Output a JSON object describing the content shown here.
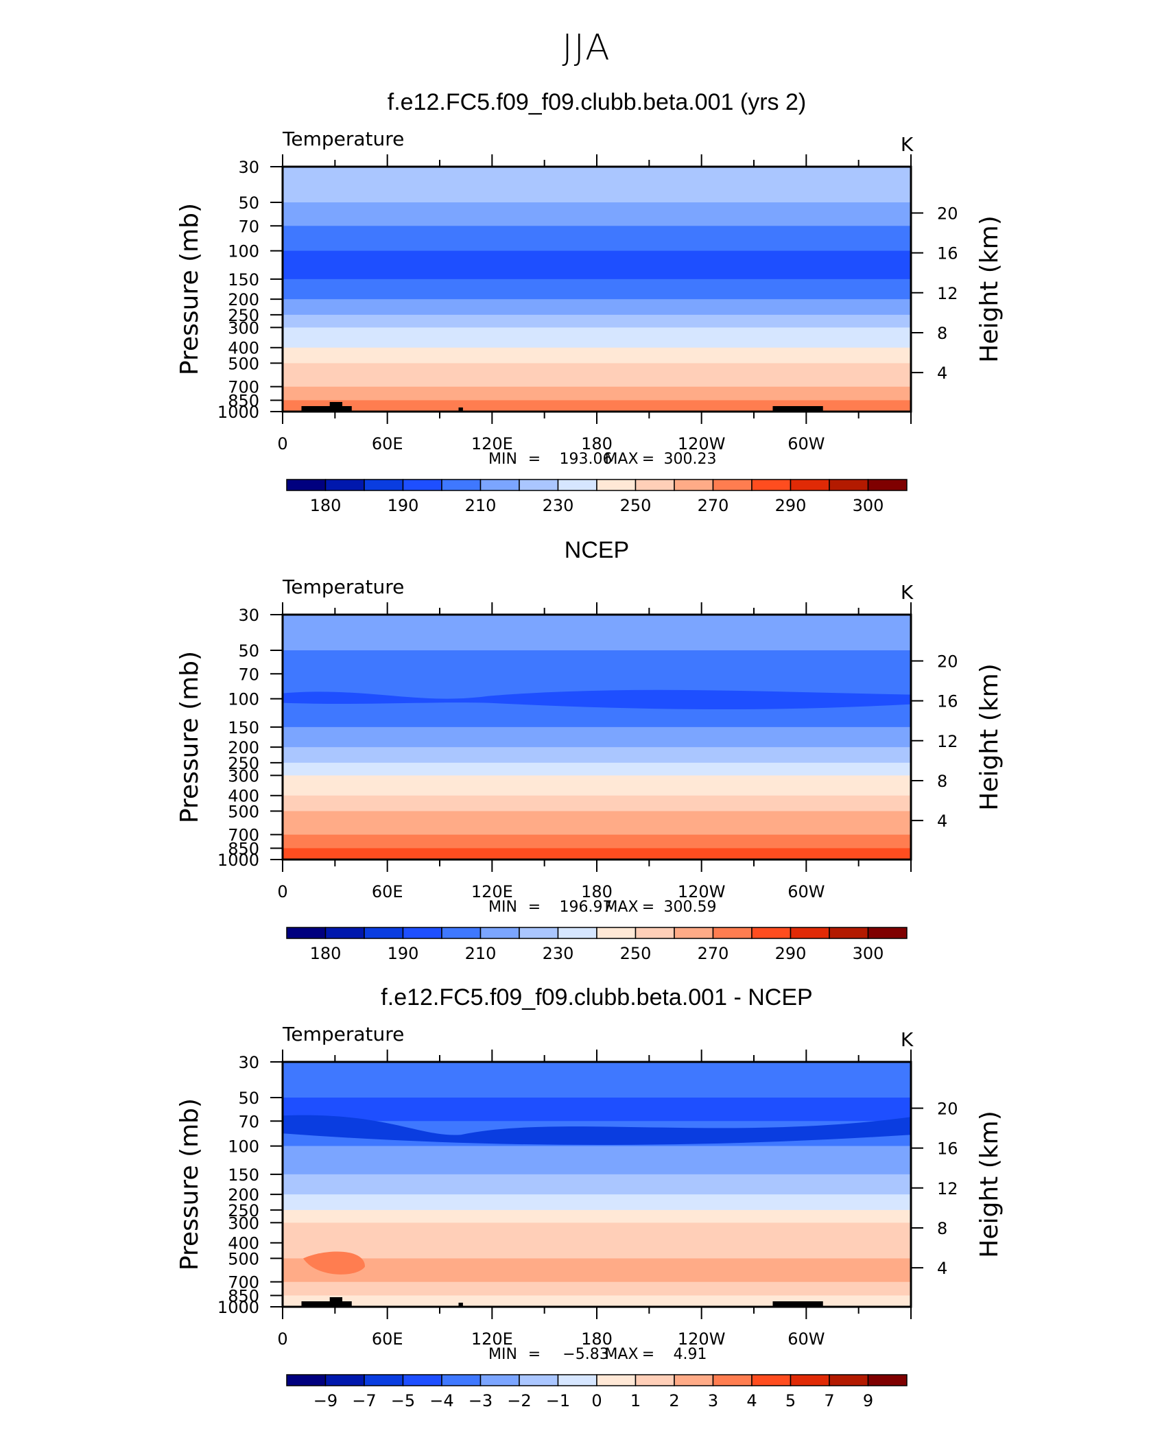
{
  "page_title": "JJA",
  "panels": [
    {
      "title": "f.e12.FC5.f09_f09.clubb.beta.001 (yrs 2)",
      "variable": "Temperature",
      "units": "K",
      "stats": {
        "min_label": "MIN",
        "min_value": "193.06",
        "max_label": "MAX",
        "max_value": "300.23",
        "eq": "="
      }
    },
    {
      "title": "NCEP",
      "variable": "Temperature",
      "units": "K",
      "stats": {
        "min_label": "MIN",
        "min_value": "196.97",
        "max_label": "MAX",
        "max_value": "300.59",
        "eq": "="
      }
    },
    {
      "title": "f.e12.FC5.f09_f09.clubb.beta.001 - NCEP",
      "variable": "Temperature",
      "units": "K",
      "stats": {
        "min_label": "MIN",
        "min_value": "−5.83",
        "max_label": "MAX",
        "max_value": "4.91",
        "eq": "="
      }
    }
  ],
  "chart_data": [
    {
      "type": "heatmap",
      "title": "f.e12.FC5.f09_f09.clubb.beta.001 (yrs 2)",
      "xlabel": "",
      "ylabel": "Pressure (mb)",
      "y2label": "Height (km)",
      "x_ticks": [
        "0",
        "60E",
        "120E",
        "180",
        "120W",
        "60W"
      ],
      "y_ticks": [
        "30",
        "50",
        "70",
        "100",
        "150",
        "200",
        "250",
        "300",
        "400",
        "500",
        "700",
        "850",
        "1000"
      ],
      "y2_ticks": [
        "20",
        "16",
        "12",
        "8",
        "4"
      ],
      "colorbar_labels": [
        "180",
        "190",
        "210",
        "230",
        "250",
        "270",
        "290",
        "300"
      ],
      "colors": [
        "#00007f",
        "#0018ad",
        "#0a3de0",
        "#1e4fff",
        "#3f78ff",
        "#7ba5ff",
        "#aac6ff",
        "#d6e6ff",
        "#ffe8d6",
        "#ffcfb8",
        "#ffab87",
        "#ff7d50",
        "#ff4d1f",
        "#e02a06",
        "#b31a00",
        "#7f0000"
      ],
      "layers_level_index": [
        6,
        5,
        4,
        3,
        4,
        5,
        6,
        7,
        8,
        9,
        10,
        11,
        12,
        13
      ],
      "min": 193.06,
      "max": 300.23
    },
    {
      "type": "heatmap",
      "title": "NCEP",
      "xlabel": "",
      "ylabel": "Pressure (mb)",
      "y2label": "Height (km)",
      "x_ticks": [
        "0",
        "60E",
        "120E",
        "180",
        "120W",
        "60W"
      ],
      "y_ticks": [
        "30",
        "50",
        "70",
        "100",
        "150",
        "200",
        "250",
        "300",
        "400",
        "500",
        "700",
        "850",
        "1000"
      ],
      "y2_ticks": [
        "20",
        "16",
        "12",
        "8",
        "4"
      ],
      "colorbar_labels": [
        "180",
        "190",
        "210",
        "230",
        "250",
        "270",
        "290",
        "300"
      ],
      "colors": [
        "#00007f",
        "#0018ad",
        "#0a3de0",
        "#1e4fff",
        "#3f78ff",
        "#7ba5ff",
        "#aac6ff",
        "#d6e6ff",
        "#ffe8d6",
        "#ffcfb8",
        "#ffab87",
        "#ff7d50",
        "#ff4d1f",
        "#e02a06",
        "#b31a00",
        "#7f0000"
      ],
      "layers_level_index": [
        5,
        4,
        4,
        4,
        5,
        6,
        7,
        8,
        9,
        10,
        11,
        12,
        13,
        14
      ],
      "min": 196.97,
      "max": 300.59
    },
    {
      "type": "heatmap",
      "title": "f.e12.FC5.f09_f09.clubb.beta.001 - NCEP",
      "xlabel": "",
      "ylabel": "Pressure (mb)",
      "y2label": "Height (km)",
      "x_ticks": [
        "0",
        "60E",
        "120E",
        "180",
        "120W",
        "60W"
      ],
      "y_ticks": [
        "30",
        "50",
        "70",
        "100",
        "150",
        "200",
        "250",
        "300",
        "400",
        "500",
        "700",
        "850",
        "1000"
      ],
      "y2_ticks": [
        "20",
        "16",
        "12",
        "8",
        "4"
      ],
      "colorbar_labels": [
        "−9",
        "−7",
        "−5",
        "−4",
        "−3",
        "−2",
        "−1",
        "0",
        "1",
        "2",
        "3",
        "4",
        "5",
        "7",
        "9"
      ],
      "colors": [
        "#00007f",
        "#0018ad",
        "#0a3de0",
        "#1e4fff",
        "#3f78ff",
        "#7ba5ff",
        "#aac6ff",
        "#d6e6ff",
        "#ffe8d6",
        "#ffcfb8",
        "#ffab87",
        "#ff7d50",
        "#ff4d1f",
        "#e02a06",
        "#b31a00",
        "#7f0000"
      ],
      "layers_level_index": [
        4,
        3,
        4,
        5,
        6,
        7,
        8,
        9,
        9,
        10,
        9,
        8,
        7,
        7
      ],
      "min": -5.83,
      "max": 4.91
    }
  ]
}
